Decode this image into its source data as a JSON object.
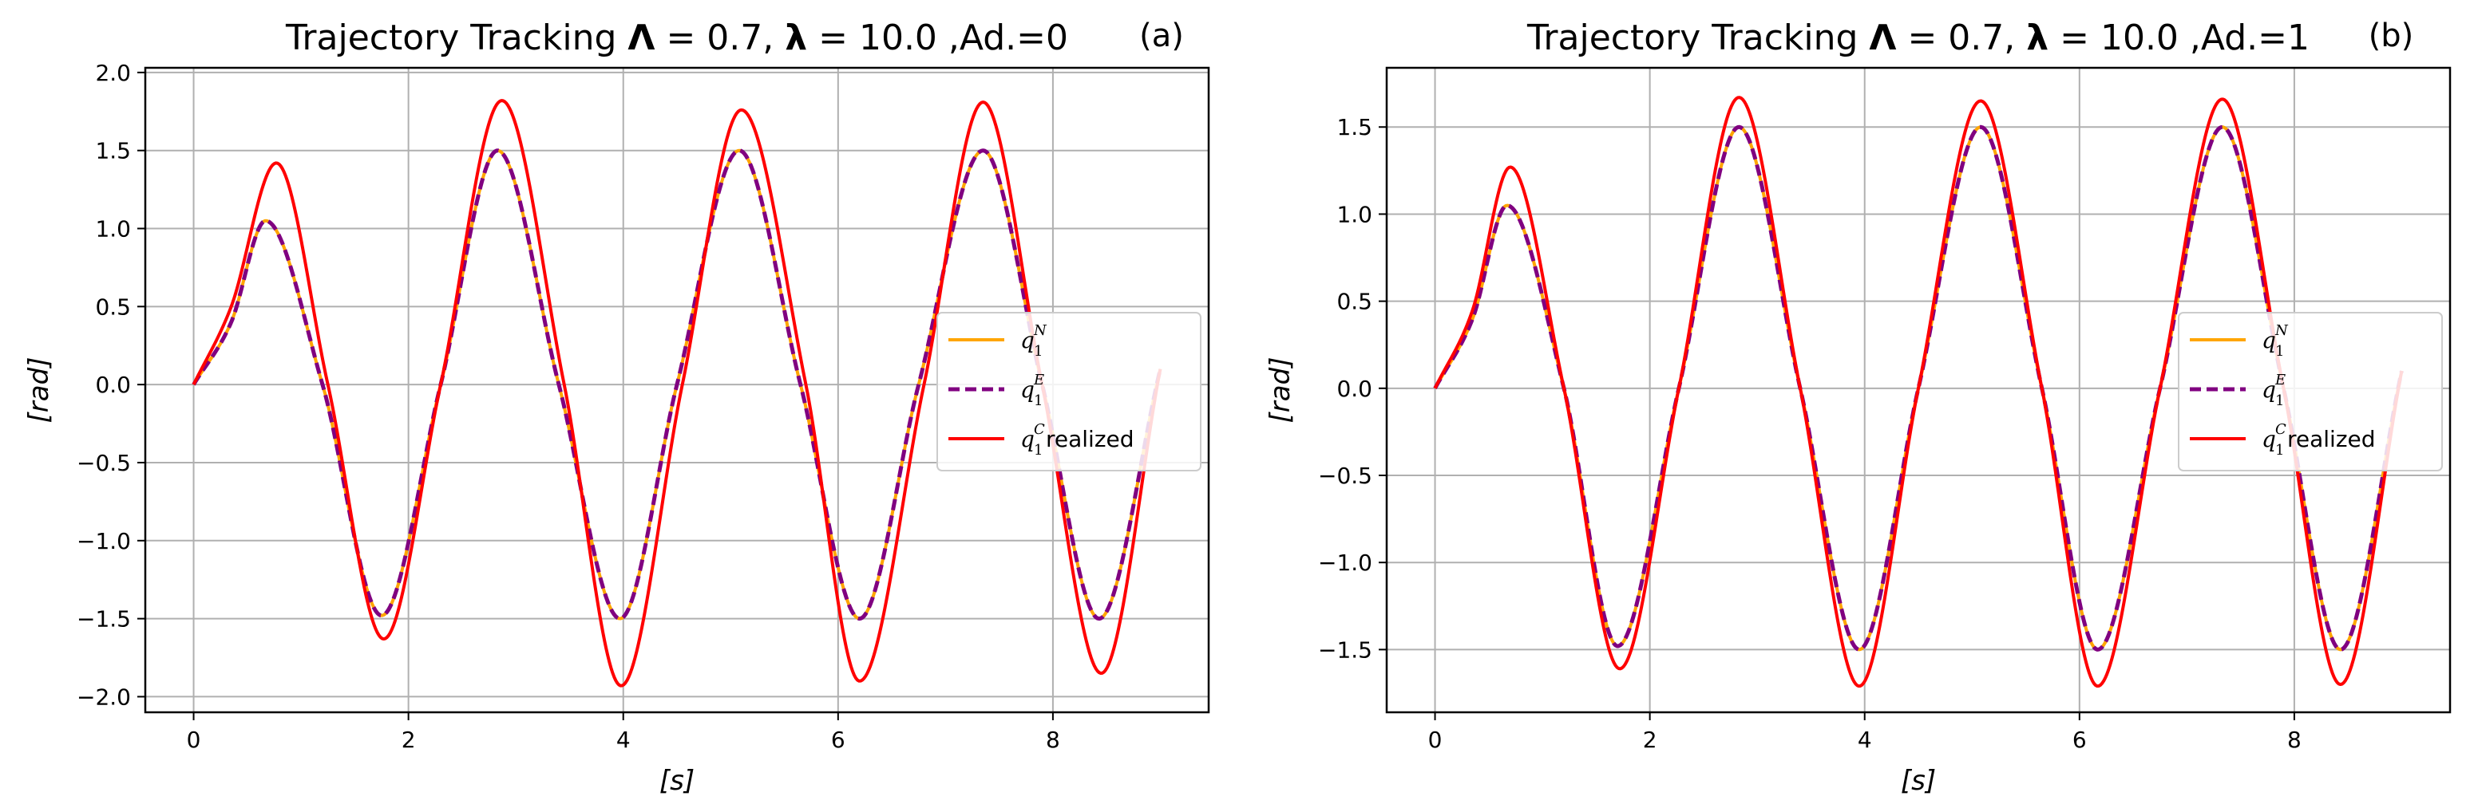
{
  "chart_data": [
    {
      "type": "line",
      "panel": "(a)",
      "title": "Trajectory Tracking Λ = 0.7, λ = 10.0 ,Ad.=0",
      "title_parts": {
        "prefix": "Trajectory Tracking ",
        "cap_lambda": "Λ",
        "eq1": " = 0.7, ",
        "lambda": "λ",
        "eq2": " = 10.0 ,Ad.=0"
      },
      "xlabel": "[s]",
      "ylabel": "[rad]",
      "xlim": [
        -0.45,
        9.45
      ],
      "ylim": [
        -2.1,
        2.03
      ],
      "xticks": [
        0,
        2,
        4,
        6,
        8
      ],
      "xtick_labels": [
        "0",
        "2",
        "4",
        "6",
        "8"
      ],
      "yticks": [
        -2.0,
        -1.5,
        -1.0,
        -0.5,
        0.0,
        0.5,
        1.0,
        1.5,
        2.0
      ],
      "ytick_labels": [
        "−2.0",
        "−1.5",
        "−1.0",
        "−0.5",
        "0.0",
        "0.5",
        "1.0",
        "1.5",
        "2.0"
      ],
      "grid": true,
      "legend_position": "center-right",
      "x_end": 9.0,
      "series": [
        {
          "name": "q1^N",
          "label_sym": "q",
          "label_sub": "1",
          "label_sup": "N",
          "label_tail": "",
          "color": "#ffa500",
          "style": "solid",
          "x": [
            0,
            0.35,
            0.67,
            1.2,
            1.75,
            2.3,
            2.83,
            3.4,
            3.97,
            4.5,
            5.08,
            5.65,
            6.2,
            6.75,
            7.35,
            7.9,
            8.43,
            9.0
          ],
          "y": [
            0,
            0.4,
            1.05,
            0.0,
            -1.48,
            0.0,
            1.5,
            0.0,
            -1.5,
            0.0,
            1.5,
            0.0,
            -1.5,
            0.0,
            1.5,
            0.0,
            -1.5,
            0.1
          ]
        },
        {
          "name": "q1^E",
          "label_sym": "q",
          "label_sub": "1",
          "label_sup": "E",
          "label_tail": "",
          "color": "#800080",
          "style": "dashed",
          "x": [
            0,
            0.35,
            0.67,
            1.2,
            1.75,
            2.3,
            2.83,
            3.4,
            3.97,
            4.5,
            5.08,
            5.65,
            6.2,
            6.75,
            7.35,
            7.9,
            8.43,
            9.0
          ],
          "y": [
            0,
            0.4,
            1.05,
            0.0,
            -1.48,
            0.0,
            1.5,
            0.0,
            -1.5,
            0.0,
            1.5,
            0.0,
            -1.5,
            0.0,
            1.5,
            0.0,
            -1.5,
            0.1
          ]
        },
        {
          "name": "q1^C realized",
          "label_sym": "q",
          "label_sub": "1",
          "label_sup": "C",
          "label_tail": " realized",
          "color": "#ff0000",
          "style": "solid",
          "x": [
            0,
            0.35,
            0.77,
            1.25,
            1.77,
            2.3,
            2.87,
            3.45,
            3.98,
            4.55,
            5.1,
            5.7,
            6.2,
            6.8,
            7.35,
            7.9,
            8.45,
            9.0
          ],
          "y": [
            0,
            0.5,
            1.42,
            0.0,
            -1.63,
            0.0,
            1.82,
            0.0,
            -1.93,
            0.0,
            1.76,
            0.0,
            -1.9,
            0.0,
            1.81,
            0.0,
            -1.85,
            0.1
          ]
        }
      ]
    },
    {
      "type": "line",
      "panel": "(b)",
      "title": "Trajectory Tracking Λ = 0.7, λ = 10.0 ,Ad.=1",
      "title_parts": {
        "prefix": "Trajectory Tracking ",
        "cap_lambda": "Λ",
        "eq1": " = 0.7, ",
        "lambda": "λ",
        "eq2": " = 10.0 ,Ad.=1"
      },
      "xlabel": "[s]",
      "ylabel": "[rad]",
      "xlim": [
        -0.45,
        9.45
      ],
      "ylim": [
        -1.86,
        1.84
      ],
      "xticks": [
        0,
        2,
        4,
        6,
        8
      ],
      "xtick_labels": [
        "0",
        "2",
        "4",
        "6",
        "8"
      ],
      "yticks": [
        -1.5,
        -1.0,
        -0.5,
        0.0,
        0.5,
        1.0,
        1.5
      ],
      "ytick_labels": [
        "−1.5",
        "−1.0",
        "−0.5",
        "0.0",
        "0.5",
        "1.0",
        "1.5"
      ],
      "grid": true,
      "legend_position": "center-right",
      "x_end": 9.0,
      "series": [
        {
          "name": "q1^N",
          "label_sym": "q",
          "label_sub": "1",
          "label_sup": "N",
          "label_tail": "",
          "color": "#ffa500",
          "style": "solid",
          "x": [
            0,
            0.35,
            0.67,
            1.2,
            1.7,
            2.27,
            2.83,
            3.4,
            3.95,
            4.5,
            5.08,
            5.65,
            6.17,
            6.75,
            7.33,
            7.9,
            8.43,
            9.0
          ],
          "y": [
            0,
            0.4,
            1.05,
            0.0,
            -1.48,
            0.0,
            1.5,
            0.0,
            -1.5,
            0.0,
            1.5,
            0.0,
            -1.5,
            0.0,
            1.5,
            0.0,
            -1.5,
            0.1
          ]
        },
        {
          "name": "q1^E",
          "label_sym": "q",
          "label_sub": "1",
          "label_sup": "E",
          "label_tail": "",
          "color": "#800080",
          "style": "dashed",
          "x": [
            0,
            0.35,
            0.67,
            1.2,
            1.7,
            2.27,
            2.83,
            3.4,
            3.95,
            4.5,
            5.08,
            5.65,
            6.17,
            6.75,
            7.33,
            7.9,
            8.43,
            9.0
          ],
          "y": [
            0,
            0.4,
            1.05,
            0.0,
            -1.48,
            0.0,
            1.5,
            0.0,
            -1.5,
            0.0,
            1.5,
            0.0,
            -1.5,
            0.0,
            1.5,
            0.0,
            -1.5,
            0.1
          ]
        },
        {
          "name": "q1^C realized",
          "label_sym": "q",
          "label_sub": "1",
          "label_sup": "C",
          "label_tail": " realized",
          "color": "#ff0000",
          "style": "solid",
          "x": [
            0,
            0.35,
            0.7,
            1.2,
            1.72,
            2.27,
            2.83,
            3.4,
            3.95,
            4.5,
            5.08,
            5.65,
            6.17,
            6.75,
            7.33,
            7.9,
            8.43,
            9.0
          ],
          "y": [
            0,
            0.45,
            1.27,
            0.0,
            -1.61,
            0.0,
            1.67,
            0.0,
            -1.71,
            0.0,
            1.65,
            0.0,
            -1.71,
            0.0,
            1.66,
            0.0,
            -1.7,
            0.1
          ]
        }
      ]
    }
  ]
}
